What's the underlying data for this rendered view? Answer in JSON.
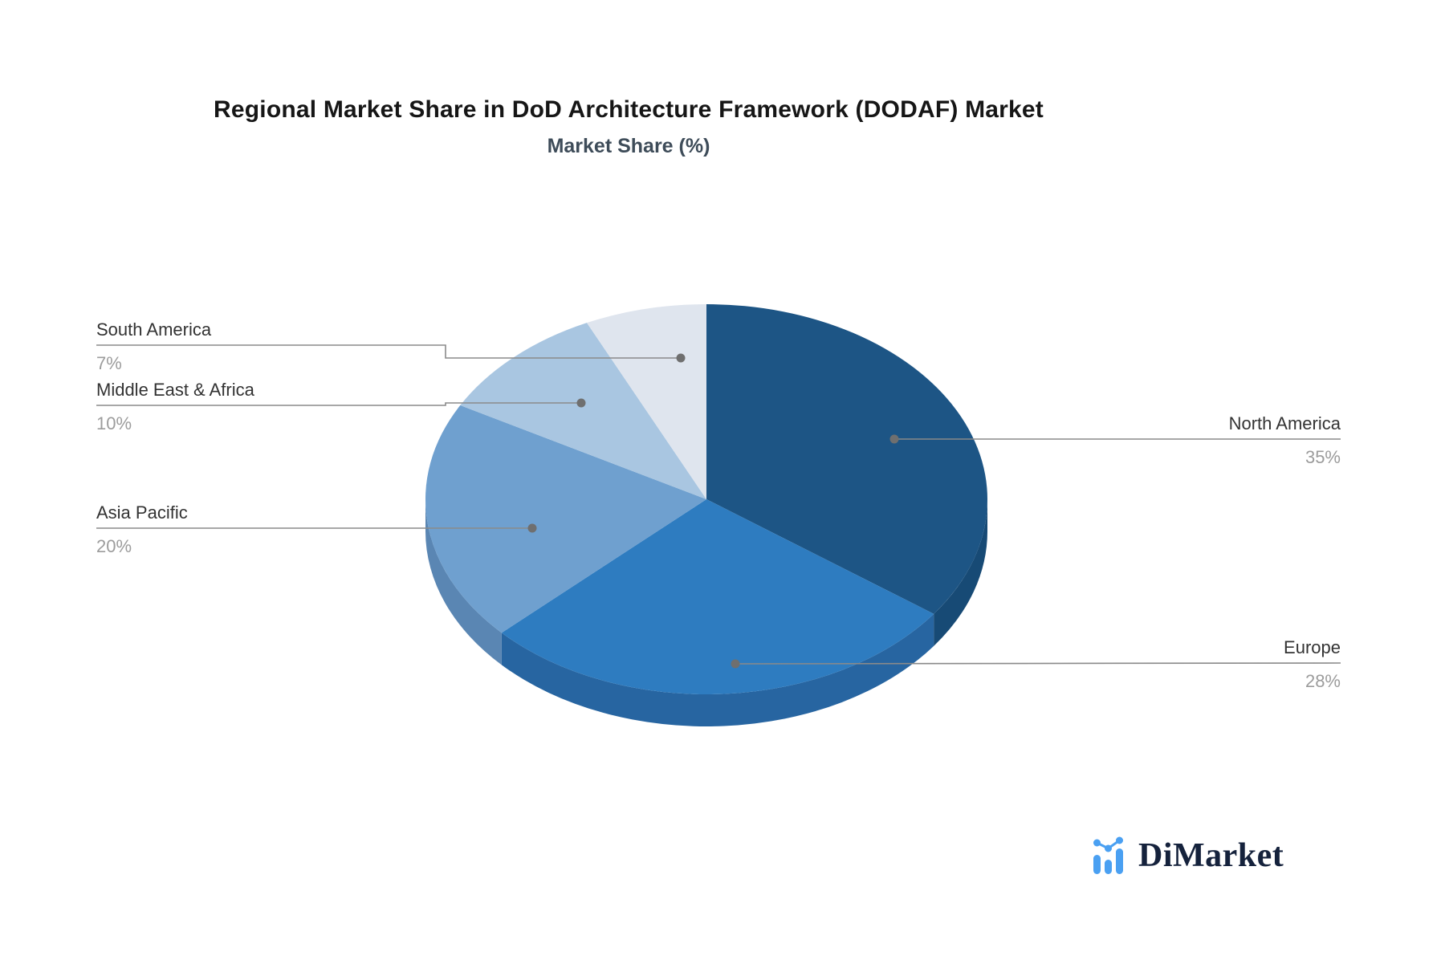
{
  "header": {
    "title": "Regional Market Share in DoD Architecture Framework (DODAF) Market",
    "subtitle": "Market Share (%)"
  },
  "chart_data": {
    "type": "pie",
    "style": "3d-pie",
    "title": "Regional Market Share in DoD Architecture Framework (DODAF) Market",
    "subtitle": "Market Share (%)",
    "unit": "%",
    "start_angle_deg": 0,
    "direction": "clockwise",
    "legend_position": "callout-labels",
    "series": [
      {
        "name": "North America",
        "value": 35,
        "display_value": "35%",
        "color": "#1D5585",
        "rim_color": "#174A75",
        "label_side": "right"
      },
      {
        "name": "Europe",
        "value": 28,
        "display_value": "28%",
        "color": "#2E7CC0",
        "rim_color": "#2765A1",
        "label_side": "right"
      },
      {
        "name": "Asia Pacific",
        "value": 20,
        "display_value": "20%",
        "color": "#6FA0CF",
        "rim_color": "#5A86B3",
        "label_side": "left"
      },
      {
        "name": "Middle East & Africa",
        "value": 10,
        "display_value": "10%",
        "color": "#A9C6E1",
        "rim_color": "#8FABCC",
        "label_side": "left"
      },
      {
        "name": "South America",
        "value": 7,
        "display_value": "7%",
        "color": "#DFE5EE",
        "rim_color": "#C3CDDD",
        "label_side": "left"
      }
    ]
  },
  "colors": {
    "background": "#FFFFFF",
    "title_text": "#161616",
    "subtitle_text": "#3E4C59",
    "label_text": "#333333",
    "percent_text": "#9C9C9C",
    "leader_line": "#8A8A8A",
    "leader_dot": "#6F6F6F"
  },
  "logo": {
    "text": "DiMarket",
    "accent_color": "#4AA0F2",
    "text_color": "#15223C"
  }
}
